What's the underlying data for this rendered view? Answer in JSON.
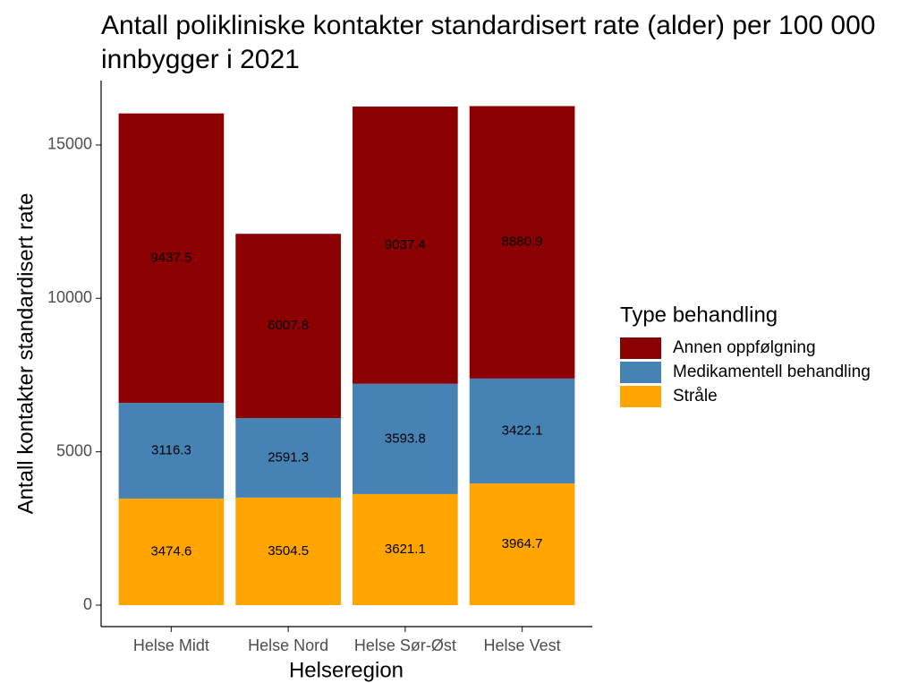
{
  "chart_data": {
    "type": "stacked_bar",
    "title": "Antall polikliniske kontakter standardisert rate (alder) per 100 000 innbygger i 2021",
    "x_label": "Helseregion",
    "y_label": "Antall kontakter standardisert rate",
    "legend_title": "Type behandling",
    "legend_position": "right",
    "categories": [
      "Helse Midt",
      "Helse Nord",
      "Helse Sør-Øst",
      "Helse Vest"
    ],
    "series": [
      {
        "name": "Annen oppfølgning",
        "color": "#8b0000",
        "values": [
          9437.5,
          6007.8,
          9037.4,
          8880.9
        ]
      },
      {
        "name": "Medikamentell behandling",
        "color": "#4682b4",
        "values": [
          3116.3,
          2591.3,
          3593.8,
          3422.1
        ]
      },
      {
        "name": "Stråle",
        "color": "#ffa500",
        "values": [
          3474.6,
          3504.5,
          3621.1,
          3964.7
        ]
      }
    ],
    "ylim": [
      -700,
      17100
    ],
    "yticks": [
      0,
      5000,
      10000,
      15000
    ]
  }
}
